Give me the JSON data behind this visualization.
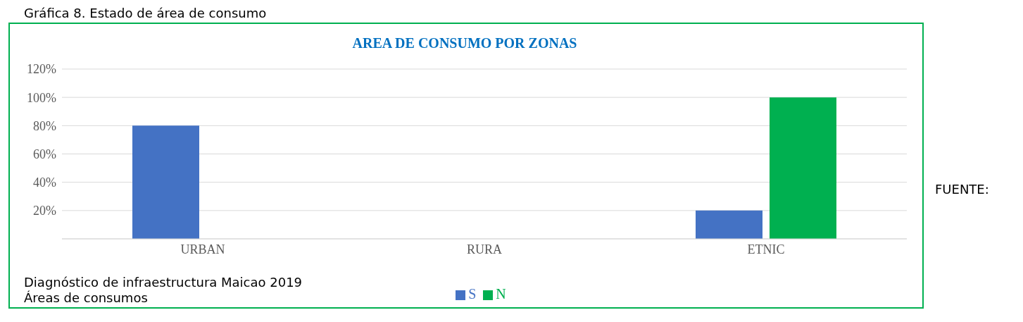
{
  "chart_data": {
    "type": "bar",
    "title": "AREA DE CONSUMO POR ZONAS",
    "categories": [
      "URBAN",
      "RURA",
      "ETNIC"
    ],
    "series": [
      {
        "name": "S",
        "color": "#4472c4",
        "values": [
          80,
          0,
          20
        ]
      },
      {
        "name": "N",
        "color": "#00b050",
        "values": [
          0,
          0,
          100
        ]
      }
    ],
    "ylim": [
      0,
      120
    ],
    "yticks": [
      {
        "value": 0,
        "label": null
      },
      {
        "value": 20,
        "label": "20%"
      },
      {
        "value": 40,
        "label": "40%"
      },
      {
        "value": 60,
        "label": "60%"
      },
      {
        "value": 80,
        "label": "80%"
      },
      {
        "value": 100,
        "label": "100%"
      },
      {
        "value": 120,
        "label": "120%"
      }
    ],
    "grid": "y",
    "legend": "bottom",
    "annotations": [
      "Gráfica 8. Estado de área de consumo",
      "FUENTE:",
      "Diagnóstico de infraestructura Maicao 2019",
      "Áreas de consumos"
    ]
  }
}
